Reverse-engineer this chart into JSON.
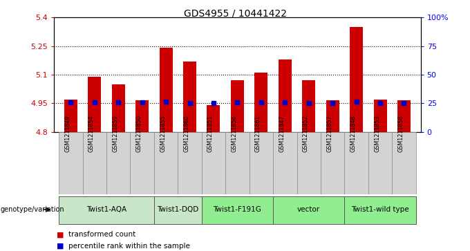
{
  "title": "GDS4955 / 10441422",
  "samples": [
    "GSM1211849",
    "GSM1211854",
    "GSM1211859",
    "GSM1211850",
    "GSM1211855",
    "GSM1211860",
    "GSM1211851",
    "GSM1211856",
    "GSM1211861",
    "GSM1211847",
    "GSM1211852",
    "GSM1211857",
    "GSM1211848",
    "GSM1211853",
    "GSM1211858"
  ],
  "bar_values": [
    4.97,
    5.09,
    5.05,
    4.965,
    5.24,
    5.17,
    4.94,
    5.07,
    5.11,
    5.18,
    5.07,
    4.965,
    5.35,
    4.97,
    4.965
  ],
  "blue_values": [
    4.953,
    4.953,
    4.955,
    4.955,
    4.957,
    4.952,
    4.95,
    4.954,
    4.954,
    4.955,
    4.952,
    4.95,
    4.957,
    4.952,
    4.951
  ],
  "groups": [
    {
      "label": "Twist1-AQA",
      "indices": [
        0,
        1,
        2,
        3
      ],
      "color": "#c8e6c8"
    },
    {
      "label": "Twist1-DQD",
      "indices": [
        4,
        5
      ],
      "color": "#c8e6c8"
    },
    {
      "label": "Twist1-F191G",
      "indices": [
        6,
        7,
        8
      ],
      "color": "#90ee90"
    },
    {
      "label": "vector",
      "indices": [
        9,
        10,
        11
      ],
      "color": "#90ee90"
    },
    {
      "label": "Twist1-wild type",
      "indices": [
        12,
        13,
        14
      ],
      "color": "#90ee90"
    }
  ],
  "ylim": [
    4.8,
    5.4
  ],
  "yticks": [
    4.8,
    4.95,
    5.1,
    5.25,
    5.4
  ],
  "ytick_labels": [
    "4.8",
    "4.95",
    "5.1",
    "5.25",
    "5.4"
  ],
  "right_yticks": [
    0,
    25,
    50,
    75,
    100
  ],
  "right_ytick_labels": [
    "0",
    "25",
    "50",
    "75",
    "100%"
  ],
  "bar_color": "#cc0000",
  "blue_color": "#0000cc",
  "bar_width": 0.55,
  "legend_items": [
    "transformed count",
    "percentile rank within the sample"
  ],
  "genotype_label": "genotype/variation"
}
